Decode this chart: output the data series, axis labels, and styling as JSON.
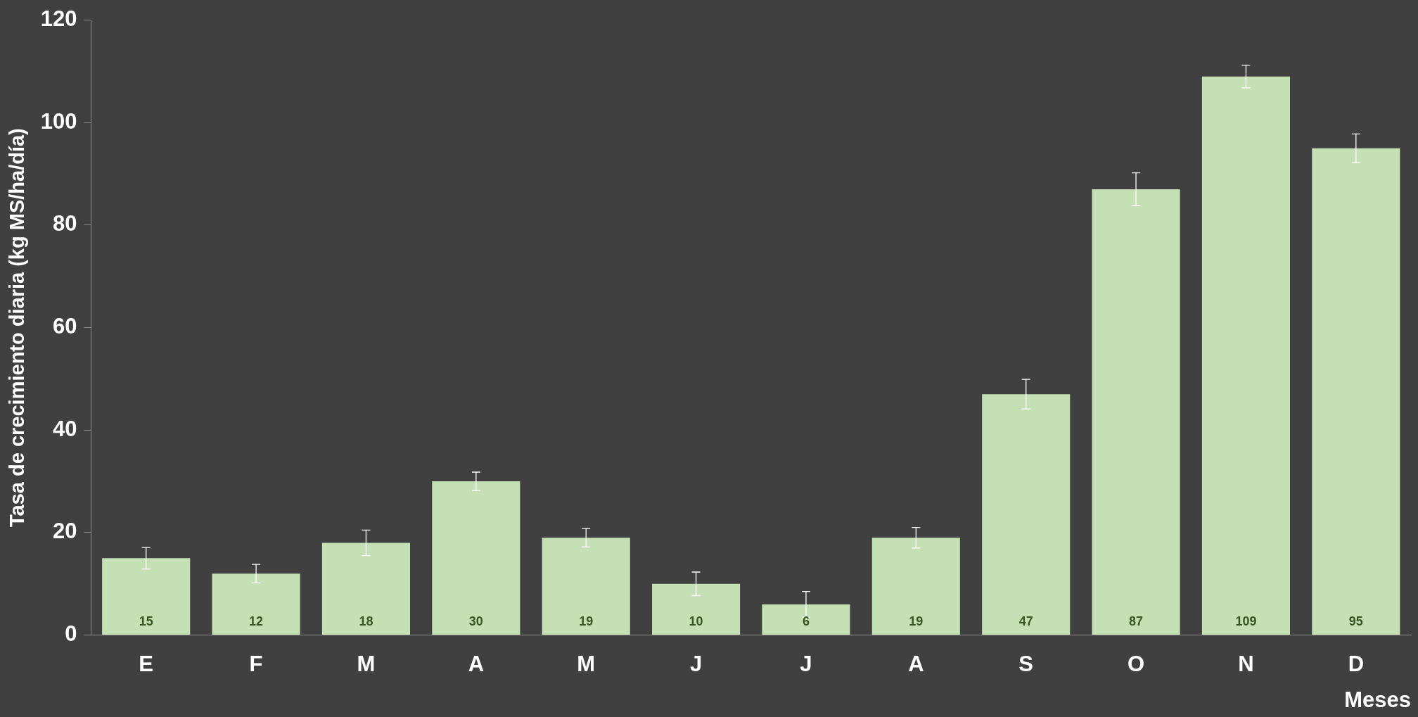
{
  "chart_data": {
    "type": "bar",
    "xlabel": "Meses",
    "ylabel": "Tasa de crecimiento diaria (kg MS/ha/día)",
    "categories": [
      "E",
      "F",
      "M",
      "A",
      "M",
      "J",
      "J",
      "A",
      "S",
      "O",
      "N",
      "D"
    ],
    "values": [
      15,
      12,
      18,
      30,
      19,
      10,
      6,
      19,
      47,
      87,
      109,
      95
    ],
    "errors": [
      2.1,
      1.8,
      2.5,
      1.8,
      1.8,
      2.3,
      2.5,
      2,
      2.9,
      3.2,
      2.2,
      2.8
    ],
    "color": "#c5e0b4",
    "ylim": [
      0,
      120
    ],
    "yticks": [
      0,
      20,
      40,
      60,
      80,
      100,
      120
    ],
    "grid": false,
    "legend": false,
    "data_labels": true
  }
}
